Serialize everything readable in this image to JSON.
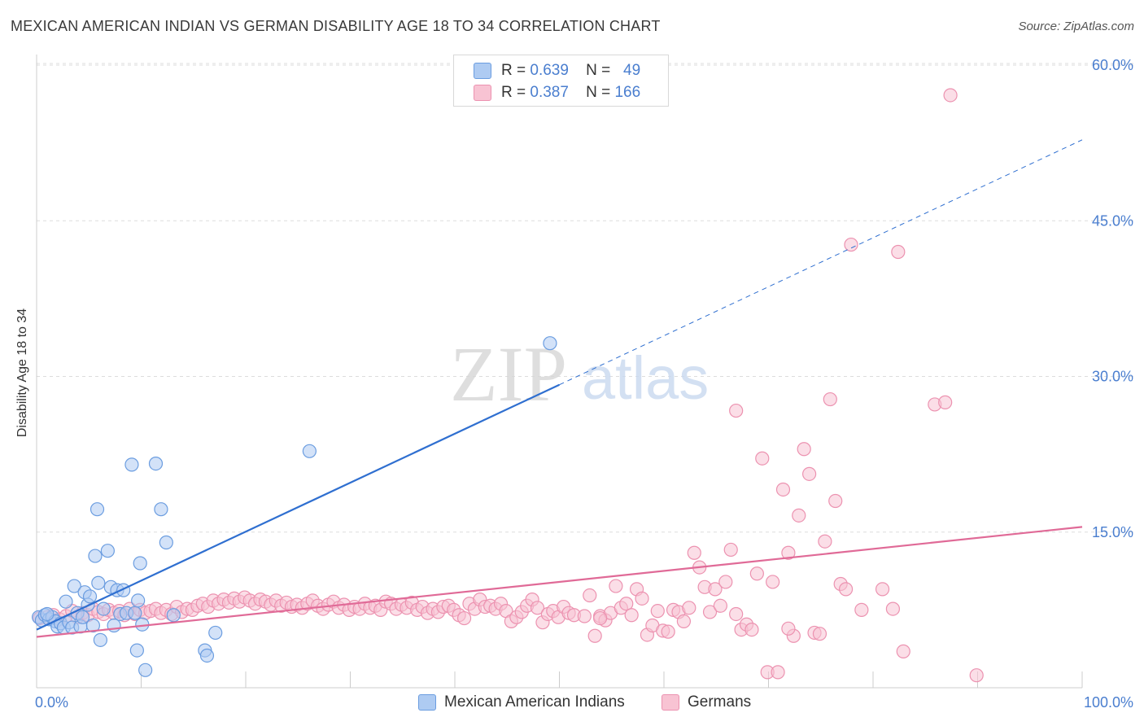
{
  "title": "MEXICAN AMERICAN INDIAN VS GERMAN DISABILITY AGE 18 TO 34 CORRELATION CHART",
  "source": "Source: ZipAtlas.com",
  "watermark": {
    "zip": "ZIP",
    "atlas": "atlas"
  },
  "legend": {
    "rows": [
      {
        "r_label": "R =",
        "r_value": "0.639",
        "n_label": "N =",
        "n_value": "49"
      },
      {
        "r_label": "R =",
        "r_value": "0.387",
        "n_label": "N =",
        "n_value": "166"
      }
    ]
  },
  "bottom_legend": [
    "Mexican American Indians",
    "Germans"
  ],
  "colors": {
    "blue_fill": "#aecbf2",
    "blue_stroke": "#6b9de0",
    "blue_line": "#2f6fd0",
    "pink_fill": "#f8c3d3",
    "pink_stroke": "#ec92b0",
    "pink_line": "#e06a97",
    "grid": "#dddddd",
    "tick_text": "#4a7ecf"
  },
  "chart_data": {
    "type": "scatter",
    "title": "MEXICAN AMERICAN INDIAN VS GERMAN DISABILITY AGE 18 TO 34 CORRELATION CHART",
    "xlabel": "",
    "ylabel": "Disability Age 18 to 34",
    "xlim": [
      0,
      100
    ],
    "ylim": [
      0,
      60
    ],
    "x_tick_labels": [
      "0.0%",
      "100.0%"
    ],
    "y_ticks": [
      15,
      30,
      45,
      60
    ],
    "y_tick_labels": [
      "15.0%",
      "30.0%",
      "45.0%",
      "60.0%"
    ],
    "grid": true,
    "legend_position": "top-center",
    "series": [
      {
        "name": "Mexican American Indians",
        "R": 0.639,
        "N": 49,
        "trend": {
          "x": [
            0,
            50
          ],
          "y": [
            5.6,
            29.2
          ],
          "dashed_to": [
            100,
            52.8
          ]
        },
        "points": [
          [
            0.2,
            6.8
          ],
          [
            0.5,
            6.5
          ],
          [
            0.8,
            7.0
          ],
          [
            1.2,
            6.6
          ],
          [
            1.5,
            6.8
          ],
          [
            1.8,
            6.4
          ],
          [
            2.0,
            5.9
          ],
          [
            2.3,
            6.2
          ],
          [
            2.6,
            5.8
          ],
          [
            2.8,
            8.3
          ],
          [
            3.1,
            6.3
          ],
          [
            3.4,
            5.8
          ],
          [
            3.6,
            9.8
          ],
          [
            3.9,
            7.2
          ],
          [
            4.2,
            5.9
          ],
          [
            4.4,
            6.8
          ],
          [
            4.6,
            9.2
          ],
          [
            4.9,
            8.0
          ],
          [
            5.1,
            8.8
          ],
          [
            5.4,
            6.0
          ],
          [
            5.6,
            12.7
          ],
          [
            5.8,
            17.2
          ],
          [
            5.9,
            10.1
          ],
          [
            6.1,
            4.6
          ],
          [
            6.4,
            7.6
          ],
          [
            6.8,
            13.2
          ],
          [
            7.1,
            9.7
          ],
          [
            7.4,
            6.0
          ],
          [
            7.7,
            9.4
          ],
          [
            8.0,
            7.1
          ],
          [
            8.3,
            9.4
          ],
          [
            8.6,
            7.2
          ],
          [
            9.1,
            21.5
          ],
          [
            9.4,
            7.2
          ],
          [
            9.6,
            3.6
          ],
          [
            9.7,
            8.4
          ],
          [
            9.9,
            12.0
          ],
          [
            10.1,
            6.1
          ],
          [
            10.4,
            1.7
          ],
          [
            11.4,
            21.6
          ],
          [
            11.9,
            17.2
          ],
          [
            12.4,
            14.0
          ],
          [
            13.1,
            7.0
          ],
          [
            16.1,
            3.6
          ],
          [
            16.3,
            3.1
          ],
          [
            17.1,
            5.3
          ],
          [
            26.1,
            22.8
          ],
          [
            49.1,
            33.2
          ],
          [
            1.0,
            7.1
          ]
        ]
      },
      {
        "name": "Germans",
        "R": 0.387,
        "N": 166,
        "trend": {
          "x": [
            0,
            100
          ],
          "y": [
            4.9,
            15.5
          ]
        },
        "points": [
          [
            0.3,
            6.7
          ],
          [
            1.0,
            6.8
          ],
          [
            1.6,
            7.0
          ],
          [
            2.2,
            6.6
          ],
          [
            2.8,
            6.9
          ],
          [
            3.4,
            7.4
          ],
          [
            3.9,
            6.8
          ],
          [
            4.4,
            7.2
          ],
          [
            4.9,
            7.0
          ],
          [
            5.4,
            7.6
          ],
          [
            5.9,
            7.3
          ],
          [
            6.4,
            7.1
          ],
          [
            6.9,
            7.5
          ],
          [
            7.4,
            7.2
          ],
          [
            7.9,
            7.4
          ],
          [
            8.4,
            7.0
          ],
          [
            8.9,
            7.6
          ],
          [
            9.4,
            7.1
          ],
          [
            9.9,
            7.5
          ],
          [
            10.4,
            7.2
          ],
          [
            10.9,
            7.4
          ],
          [
            11.4,
            7.6
          ],
          [
            11.9,
            7.2
          ],
          [
            12.4,
            7.5
          ],
          [
            12.9,
            7.1
          ],
          [
            13.4,
            7.8
          ],
          [
            13.9,
            7.3
          ],
          [
            14.4,
            7.6
          ],
          [
            14.9,
            7.5
          ],
          [
            15.4,
            7.9
          ],
          [
            15.9,
            8.1
          ],
          [
            16.4,
            7.8
          ],
          [
            16.9,
            8.4
          ],
          [
            17.4,
            8.1
          ],
          [
            17.9,
            8.5
          ],
          [
            18.4,
            8.2
          ],
          [
            18.9,
            8.6
          ],
          [
            19.4,
            8.3
          ],
          [
            19.9,
            8.7
          ],
          [
            20.4,
            8.4
          ],
          [
            20.9,
            8.1
          ],
          [
            21.4,
            8.5
          ],
          [
            21.9,
            8.3
          ],
          [
            22.4,
            8.0
          ],
          [
            22.9,
            8.4
          ],
          [
            23.4,
            7.9
          ],
          [
            23.9,
            8.2
          ],
          [
            24.4,
            7.8
          ],
          [
            24.9,
            8.0
          ],
          [
            25.4,
            7.7
          ],
          [
            25.9,
            8.1
          ],
          [
            26.4,
            8.4
          ],
          [
            26.9,
            7.9
          ],
          [
            27.4,
            7.6
          ],
          [
            27.9,
            8.0
          ],
          [
            28.4,
            8.3
          ],
          [
            28.9,
            7.7
          ],
          [
            29.4,
            8.0
          ],
          [
            29.9,
            7.5
          ],
          [
            30.4,
            7.8
          ],
          [
            30.9,
            7.6
          ],
          [
            31.4,
            8.1
          ],
          [
            31.9,
            7.7
          ],
          [
            32.4,
            7.9
          ],
          [
            32.9,
            7.5
          ],
          [
            33.4,
            8.3
          ],
          [
            33.9,
            8.1
          ],
          [
            34.4,
            7.6
          ],
          [
            34.9,
            8.0
          ],
          [
            35.4,
            7.7
          ],
          [
            35.9,
            8.2
          ],
          [
            36.4,
            7.5
          ],
          [
            36.9,
            7.8
          ],
          [
            37.4,
            7.2
          ],
          [
            37.9,
            7.6
          ],
          [
            38.4,
            7.3
          ],
          [
            38.9,
            7.8
          ],
          [
            39.4,
            7.9
          ],
          [
            39.9,
            7.5
          ],
          [
            40.4,
            7.0
          ],
          [
            40.9,
            6.7
          ],
          [
            41.4,
            8.1
          ],
          [
            41.9,
            7.6
          ],
          [
            42.4,
            8.5
          ],
          [
            42.9,
            7.8
          ],
          [
            43.4,
            7.9
          ],
          [
            43.9,
            7.6
          ],
          [
            44.4,
            8.1
          ],
          [
            44.9,
            7.4
          ],
          [
            45.4,
            6.4
          ],
          [
            45.9,
            6.8
          ],
          [
            46.4,
            7.3
          ],
          [
            46.9,
            7.9
          ],
          [
            47.4,
            8.5
          ],
          [
            47.9,
            7.7
          ],
          [
            48.4,
            6.3
          ],
          [
            48.9,
            7.1
          ],
          [
            49.4,
            7.4
          ],
          [
            49.9,
            6.8
          ],
          [
            50.4,
            7.8
          ],
          [
            50.9,
            7.2
          ],
          [
            51.4,
            7.0
          ],
          [
            52.4,
            6.9
          ],
          [
            52.9,
            8.9
          ],
          [
            53.4,
            5.0
          ],
          [
            53.9,
            6.9
          ],
          [
            54.4,
            6.5
          ],
          [
            54.9,
            7.2
          ],
          [
            55.4,
            9.8
          ],
          [
            55.9,
            7.7
          ],
          [
            56.4,
            8.1
          ],
          [
            56.9,
            7.0
          ],
          [
            57.4,
            9.5
          ],
          [
            57.9,
            8.6
          ],
          [
            58.4,
            5.1
          ],
          [
            58.9,
            6.0
          ],
          [
            59.4,
            7.4
          ],
          [
            59.9,
            5.5
          ],
          [
            60.4,
            5.4
          ],
          [
            60.9,
            7.5
          ],
          [
            61.4,
            7.3
          ],
          [
            61.9,
            6.4
          ],
          [
            62.4,
            7.7
          ],
          [
            62.9,
            13.0
          ],
          [
            63.4,
            11.6
          ],
          [
            63.9,
            9.7
          ],
          [
            64.4,
            7.3
          ],
          [
            64.9,
            9.5
          ],
          [
            65.4,
            7.9
          ],
          [
            65.9,
            10.2
          ],
          [
            66.4,
            13.3
          ],
          [
            66.9,
            7.1
          ],
          [
            67.4,
            5.6
          ],
          [
            67.9,
            6.1
          ],
          [
            68.4,
            5.6
          ],
          [
            68.9,
            11.0
          ],
          [
            69.4,
            22.1
          ],
          [
            69.9,
            1.5
          ],
          [
            70.4,
            10.2
          ],
          [
            70.9,
            1.5
          ],
          [
            71.4,
            19.1
          ],
          [
            71.9,
            13.0
          ],
          [
            72.4,
            5.0
          ],
          [
            72.9,
            16.6
          ],
          [
            73.4,
            23.0
          ],
          [
            73.9,
            20.6
          ],
          [
            74.4,
            5.3
          ],
          [
            74.9,
            5.2
          ],
          [
            75.4,
            14.1
          ],
          [
            75.9,
            27.8
          ],
          [
            76.4,
            18.0
          ],
          [
            76.9,
            10.0
          ],
          [
            77.4,
            9.5
          ],
          [
            77.9,
            42.7
          ],
          [
            78.9,
            7.5
          ],
          [
            80.9,
            9.5
          ],
          [
            81.9,
            7.6
          ],
          [
            82.4,
            42.0
          ],
          [
            82.9,
            3.5
          ],
          [
            85.9,
            27.3
          ],
          [
            86.9,
            27.5
          ],
          [
            87.4,
            57.1
          ],
          [
            89.9,
            1.2
          ],
          [
            66.9,
            26.7
          ],
          [
            71.9,
            5.7
          ],
          [
            53.9,
            6.7
          ]
        ]
      }
    ]
  }
}
